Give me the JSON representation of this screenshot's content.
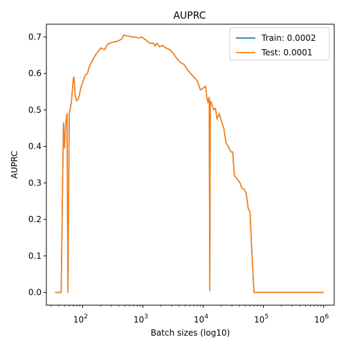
{
  "chart_data": {
    "type": "line",
    "title": "AUPRC",
    "xlabel": "Batch sizes (log10)",
    "ylabel": "AUPRC",
    "xscale": "log",
    "xlim": [
      25,
      1500000
    ],
    "ylim": [
      -0.035,
      0.735
    ],
    "grid": false,
    "legend_position": "top-right",
    "yticks": [
      "0.0",
      "0.1",
      "0.2",
      "0.3",
      "0.4",
      "0.5",
      "0.6",
      "0.7"
    ],
    "xticks": [
      {
        "base": "10",
        "exp": "2"
      },
      {
        "base": "10",
        "exp": "3"
      },
      {
        "base": "10",
        "exp": "4"
      },
      {
        "base": "10",
        "exp": "5"
      },
      {
        "base": "10",
        "exp": "6"
      }
    ],
    "series": [
      {
        "name": "Train: 0.0002",
        "color": "#1f77b4",
        "points": [
          [
            35,
            0.0
          ],
          [
            44,
            0.0
          ],
          [
            48,
            0.465
          ],
          [
            50,
            0.395
          ],
          [
            52,
            0.46
          ],
          [
            55,
            0.49
          ],
          [
            57,
            0.0
          ],
          [
            60,
            0.49
          ],
          [
            65,
            0.52
          ],
          [
            70,
            0.585
          ],
          [
            72,
            0.59
          ],
          [
            75,
            0.54
          ],
          [
            80,
            0.525
          ],
          [
            85,
            0.53
          ],
          [
            95,
            0.565
          ],
          [
            100,
            0.575
          ],
          [
            110,
            0.595
          ],
          [
            120,
            0.6
          ],
          [
            130,
            0.62
          ],
          [
            150,
            0.64
          ],
          [
            170,
            0.655
          ],
          [
            200,
            0.67
          ],
          [
            230,
            0.665
          ],
          [
            260,
            0.68
          ],
          [
            300,
            0.685
          ],
          [
            350,
            0.687
          ],
          [
            400,
            0.69
          ],
          [
            450,
            0.695
          ],
          [
            480,
            0.705
          ],
          [
            550,
            0.703
          ],
          [
            650,
            0.7
          ],
          [
            750,
            0.7
          ],
          [
            850,
            0.697
          ],
          [
            950,
            0.7
          ],
          [
            1100,
            0.693
          ],
          [
            1300,
            0.683
          ],
          [
            1500,
            0.683
          ],
          [
            1600,
            0.675
          ],
          [
            1700,
            0.683
          ],
          [
            1900,
            0.673
          ],
          [
            2100,
            0.677
          ],
          [
            2400,
            0.67
          ],
          [
            2800,
            0.665
          ],
          [
            3200,
            0.655
          ],
          [
            3700,
            0.64
          ],
          [
            4200,
            0.63
          ],
          [
            4800,
            0.625
          ],
          [
            5500,
            0.61
          ],
          [
            6200,
            0.6
          ],
          [
            7000,
            0.59
          ],
          [
            8000,
            0.58
          ],
          [
            9000,
            0.555
          ],
          [
            10000,
            0.56
          ],
          [
            11000,
            0.565
          ],
          [
            11500,
            0.535
          ],
          [
            12000,
            0.52
          ],
          [
            12300,
            0.53
          ],
          [
            12600,
            0.535
          ],
          [
            12900,
            0.005
          ],
          [
            13200,
            0.525
          ],
          [
            14000,
            0.515
          ],
          [
            15000,
            0.5
          ],
          [
            16000,
            0.505
          ],
          [
            17000,
            0.475
          ],
          [
            18500,
            0.49
          ],
          [
            20000,
            0.47
          ],
          [
            22000,
            0.45
          ],
          [
            24000,
            0.41
          ],
          [
            26000,
            0.4
          ],
          [
            29000,
            0.385
          ],
          [
            31000,
            0.385
          ],
          [
            33000,
            0.32
          ],
          [
            37000,
            0.31
          ],
          [
            41000,
            0.3
          ],
          [
            44000,
            0.285
          ],
          [
            48000,
            0.283
          ],
          [
            52000,
            0.27
          ],
          [
            56000,
            0.23
          ],
          [
            60000,
            0.22
          ],
          [
            64000,
            0.12
          ],
          [
            70000,
            0.0
          ],
          [
            80000,
            0.0
          ],
          [
            1000000,
            0.0
          ]
        ]
      },
      {
        "name": "Test: 0.0001",
        "color": "#ff7f0e",
        "points": [
          [
            35,
            0.0
          ],
          [
            44,
            0.0
          ],
          [
            48,
            0.465
          ],
          [
            50,
            0.395
          ],
          [
            52,
            0.46
          ],
          [
            55,
            0.49
          ],
          [
            57,
            0.0
          ],
          [
            60,
            0.49
          ],
          [
            65,
            0.52
          ],
          [
            70,
            0.585
          ],
          [
            72,
            0.59
          ],
          [
            75,
            0.54
          ],
          [
            80,
            0.525
          ],
          [
            85,
            0.53
          ],
          [
            95,
            0.565
          ],
          [
            100,
            0.575
          ],
          [
            110,
            0.595
          ],
          [
            120,
            0.6
          ],
          [
            130,
            0.62
          ],
          [
            150,
            0.64
          ],
          [
            170,
            0.655
          ],
          [
            200,
            0.67
          ],
          [
            230,
            0.665
          ],
          [
            260,
            0.68
          ],
          [
            300,
            0.685
          ],
          [
            350,
            0.687
          ],
          [
            400,
            0.69
          ],
          [
            450,
            0.695
          ],
          [
            480,
            0.705
          ],
          [
            550,
            0.703
          ],
          [
            650,
            0.7
          ],
          [
            750,
            0.7
          ],
          [
            850,
            0.697
          ],
          [
            950,
            0.7
          ],
          [
            1100,
            0.693
          ],
          [
            1300,
            0.683
          ],
          [
            1500,
            0.683
          ],
          [
            1600,
            0.675
          ],
          [
            1700,
            0.683
          ],
          [
            1900,
            0.673
          ],
          [
            2100,
            0.677
          ],
          [
            2400,
            0.67
          ],
          [
            2800,
            0.665
          ],
          [
            3200,
            0.655
          ],
          [
            3700,
            0.64
          ],
          [
            4200,
            0.63
          ],
          [
            4800,
            0.625
          ],
          [
            5500,
            0.61
          ],
          [
            6200,
            0.6
          ],
          [
            7000,
            0.59
          ],
          [
            8000,
            0.58
          ],
          [
            9000,
            0.555
          ],
          [
            10000,
            0.56
          ],
          [
            11000,
            0.565
          ],
          [
            11500,
            0.535
          ],
          [
            12000,
            0.52
          ],
          [
            12300,
            0.53
          ],
          [
            12600,
            0.535
          ],
          [
            12900,
            0.005
          ],
          [
            13200,
            0.525
          ],
          [
            14000,
            0.515
          ],
          [
            15000,
            0.5
          ],
          [
            16000,
            0.505
          ],
          [
            17000,
            0.475
          ],
          [
            18500,
            0.49
          ],
          [
            20000,
            0.47
          ],
          [
            22000,
            0.45
          ],
          [
            24000,
            0.41
          ],
          [
            26000,
            0.4
          ],
          [
            29000,
            0.385
          ],
          [
            31000,
            0.385
          ],
          [
            33000,
            0.32
          ],
          [
            37000,
            0.31
          ],
          [
            41000,
            0.3
          ],
          [
            44000,
            0.285
          ],
          [
            48000,
            0.283
          ],
          [
            52000,
            0.27
          ],
          [
            56000,
            0.23
          ],
          [
            60000,
            0.22
          ],
          [
            64000,
            0.12
          ],
          [
            70000,
            0.0
          ],
          [
            80000,
            0.0
          ],
          [
            1000000,
            0.0
          ]
        ]
      }
    ]
  }
}
